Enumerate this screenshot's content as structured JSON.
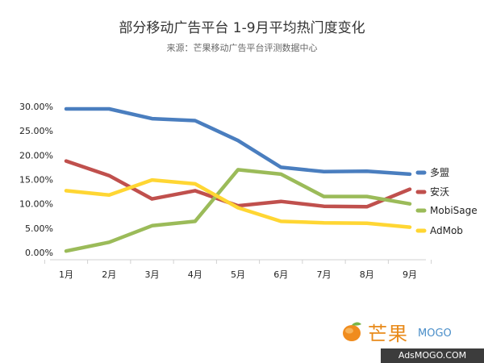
{
  "chart_data": {
    "type": "line",
    "title": "部分移动广告平台 1-9月平均热门度变化",
    "subtitle": "来源：芒果移动广告平台评测数据中心",
    "categories": [
      "1月",
      "2月",
      "3月",
      "4月",
      "5月",
      "6月",
      "7月",
      "8月",
      "9月"
    ],
    "y_ticks": [
      "30.00%",
      "25.00%",
      "20.00%",
      "15.00%",
      "10.00%",
      "5.00%",
      "0.00%"
    ],
    "ylim": [
      0,
      30
    ],
    "grid": false,
    "legend_position": "right",
    "series": [
      {
        "name": "多盟",
        "color": "#4a7ebf",
        "values": [
          29.5,
          29.5,
          27.5,
          27.1,
          23.0,
          17.5,
          16.6,
          16.7,
          16.1
        ]
      },
      {
        "name": "安沃",
        "color": "#c0504d",
        "values": [
          18.8,
          15.8,
          11.0,
          12.7,
          9.6,
          10.5,
          9.5,
          9.4,
          13.0
        ]
      },
      {
        "name": "MobiSage",
        "color": "#9bbb59",
        "values": [
          0.3,
          2.1,
          5.5,
          6.4,
          17.0,
          16.1,
          11.5,
          11.5,
          10.0
        ]
      },
      {
        "name": "AdMob",
        "color": "#ffd633",
        "values": [
          12.7,
          11.8,
          14.9,
          14.1,
          9.2,
          6.4,
          6.1,
          6.0,
          5.2
        ]
      }
    ]
  },
  "brand": {
    "cn": "芒果",
    "en": "MOGO",
    "site": "AdsMOGO.COM"
  }
}
